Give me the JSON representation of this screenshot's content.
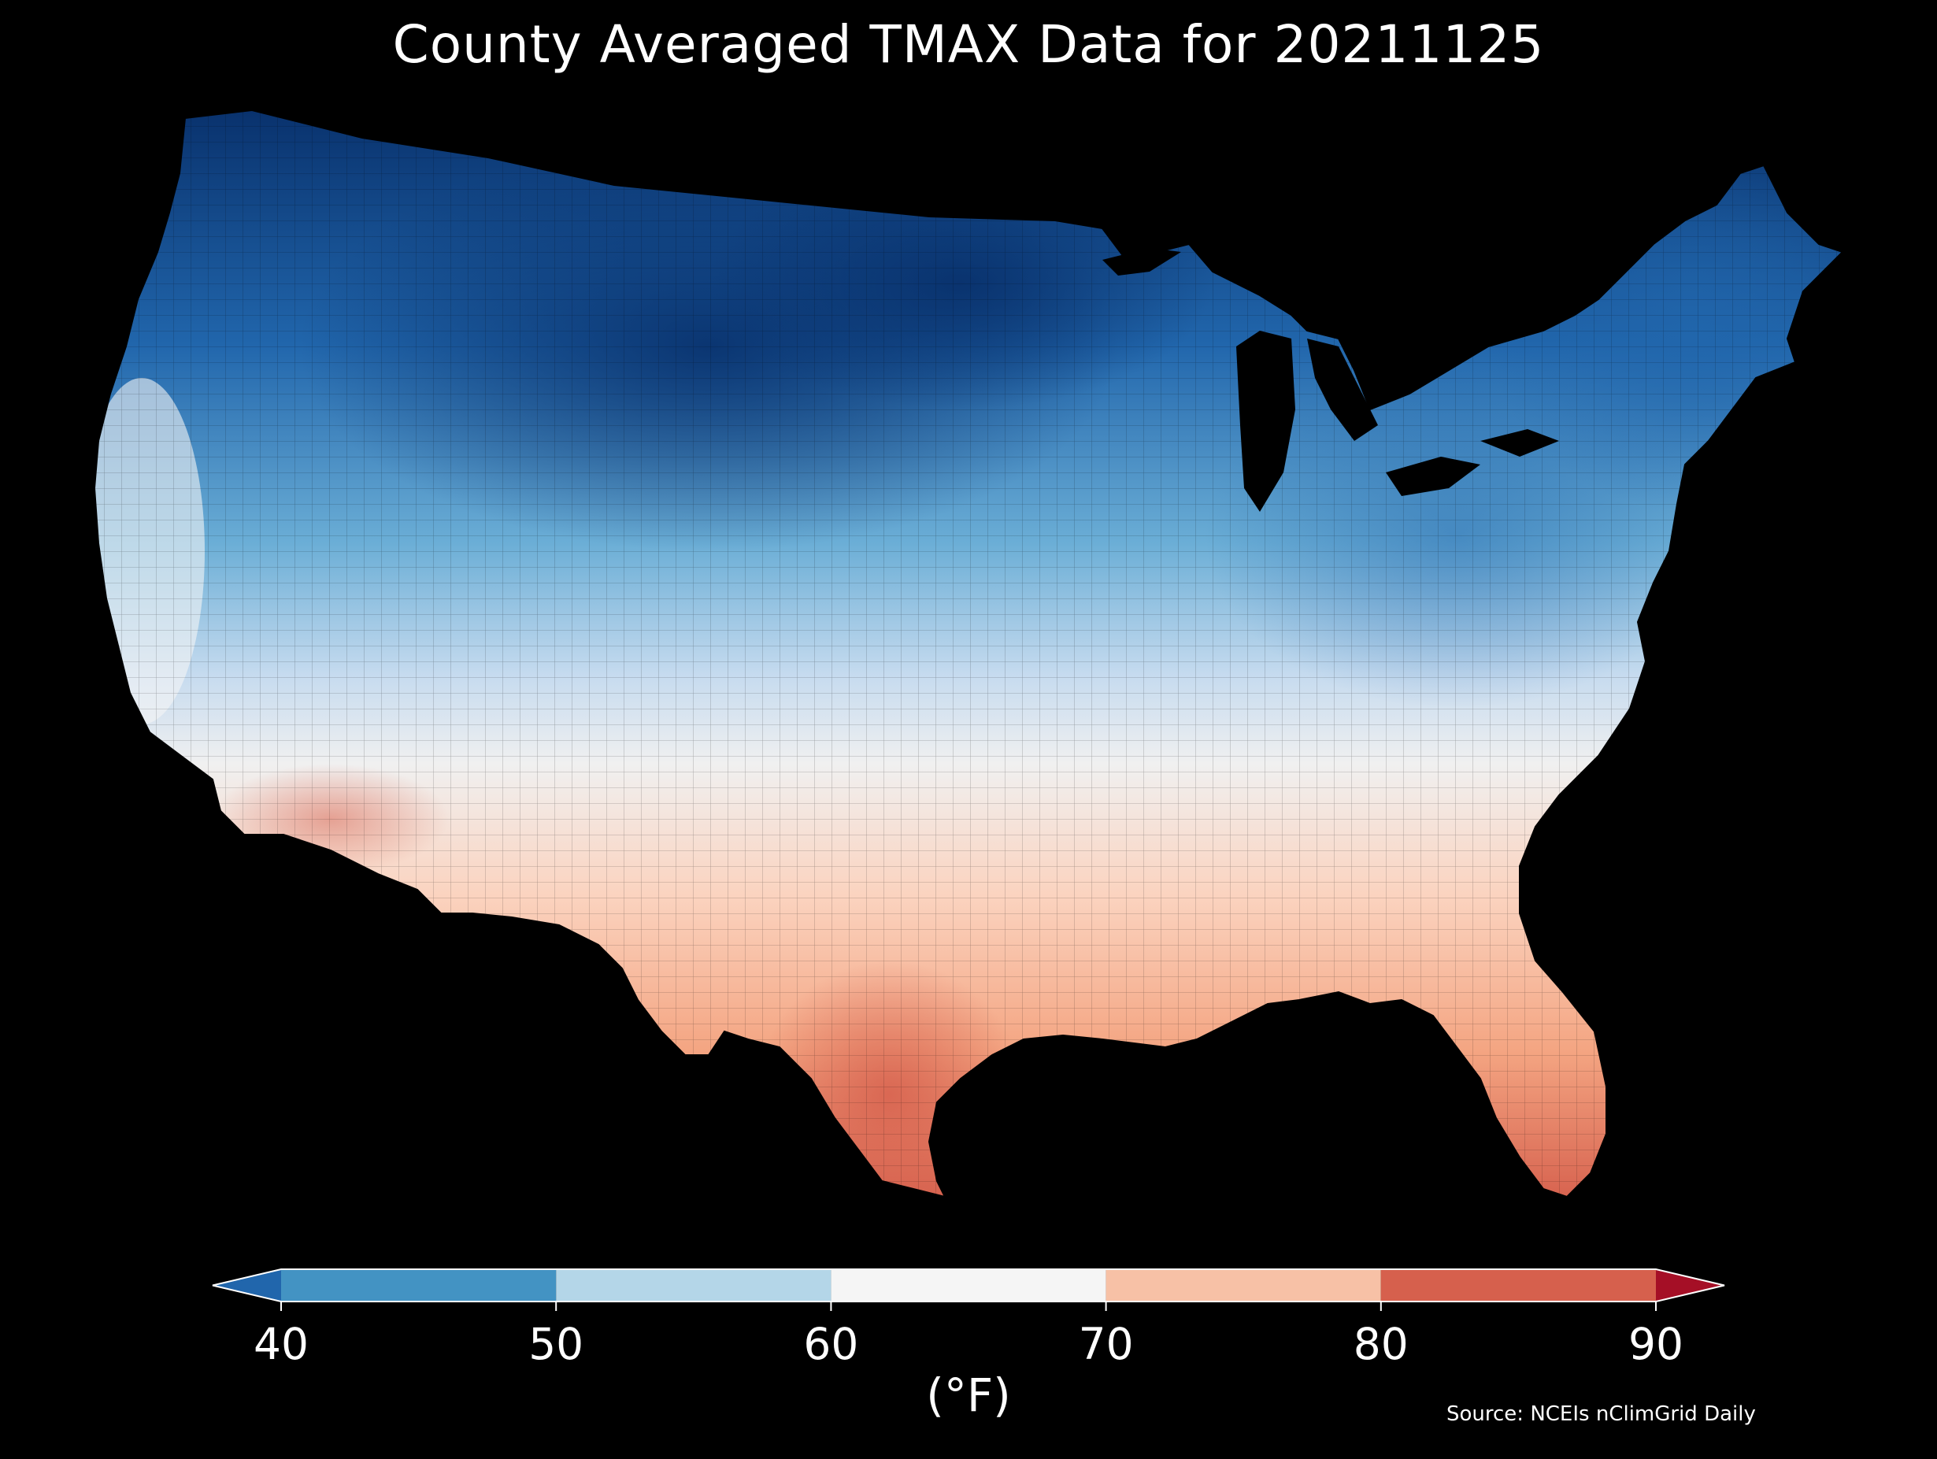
{
  "title": "County Averaged TMAX Data for 20211125",
  "colorbar": {
    "label": "(°F)",
    "ticks": [
      "40",
      "50",
      "60",
      "70",
      "80",
      "90"
    ],
    "under_color": "#2166ac",
    "over_color": "#a50f26",
    "bins": [
      {
        "from": 40,
        "to": 50,
        "color": "#4393c3"
      },
      {
        "from": 50,
        "to": 60,
        "color": "#b4d6e8"
      },
      {
        "from": 60,
        "to": 70,
        "color": "#f5f5f5"
      },
      {
        "from": 70,
        "to": 80,
        "color": "#f7c1a6"
      },
      {
        "from": 80,
        "to": 90,
        "color": "#d6604d"
      }
    ]
  },
  "source": "Source: NCEIs nClimGrid Daily",
  "map": {
    "region": "contiguous-united-states",
    "unit": "°F",
    "background": "#000000",
    "border_color": "#000000"
  }
}
